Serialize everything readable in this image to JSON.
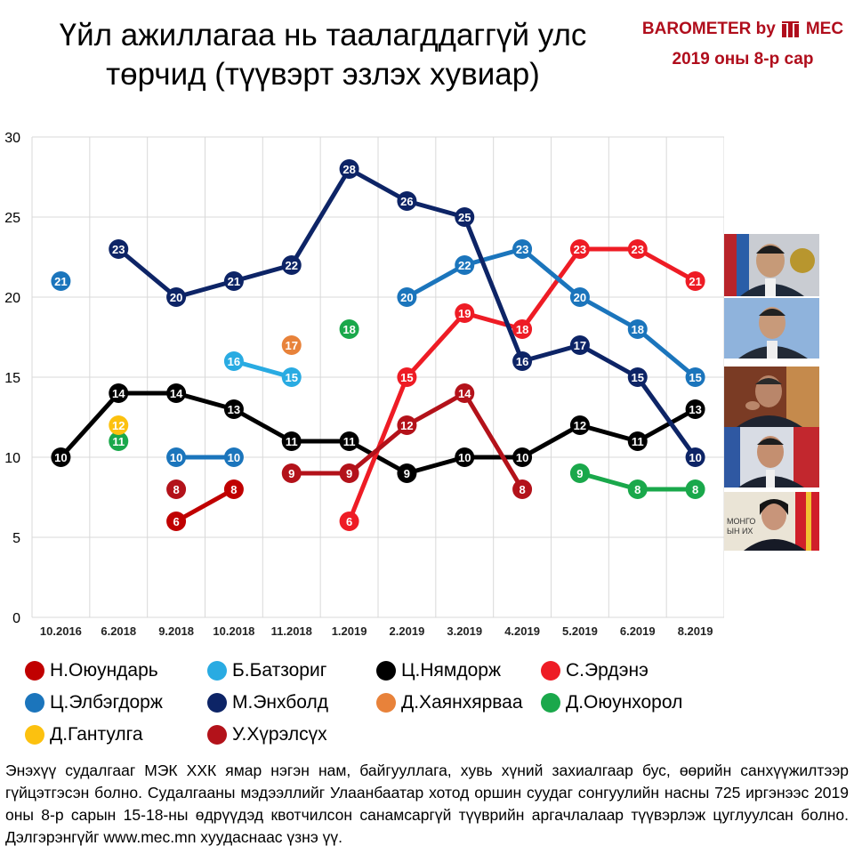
{
  "title": "Үйл ажиллагаа нь таалагддаггүй улс төрчид (түүвэрт эзлэх хувиар)",
  "brand": {
    "name": "BAROMETER by",
    "logo_text": "MEC",
    "date": "2019 оны 8-р сар",
    "color": "#b00d1c"
  },
  "footer": "Энэхүү судалгааг МЭК ХХК ямар нэгэн нам, байгууллага, хувь хүний захиалгаар бус, өөрийн санхүүжилтээр гүйцэтгэсэн болно. Судалгааны мэдээллийг Улаанбаатар хотод оршин суудаг сонгуулийн насны 725 иргэнээс 2019 оны 8-р сарын 15-18-ны өдрүүдэд квотчилсон санамсаргүй түүврийн аргачлалаар түүвэрлэж цуглуулсан болно. Дэлгэрэнгүйг www.mec.mn хуудаснаас үзнэ үү.",
  "chart_data": {
    "type": "line",
    "title": "",
    "xlabel": "",
    "ylabel": "",
    "ylim": [
      0,
      30
    ],
    "yticks": [
      0,
      5,
      10,
      15,
      20,
      25,
      30
    ],
    "categories": [
      "10.2016",
      "6.2018",
      "9.2018",
      "10.2018",
      "11.2018",
      "1.2019",
      "2.2019",
      "3.2019",
      "4.2019",
      "5.2019",
      "6.2019",
      "8.2019"
    ],
    "grid": true,
    "legend_position": "bottom",
    "series": [
      {
        "name": "Н.Оюундарь",
        "color": "#c00000",
        "values": [
          null,
          null,
          6,
          8,
          null,
          null,
          null,
          null,
          null,
          null,
          null,
          null
        ]
      },
      {
        "name": "Б.Батзориг",
        "color": "#29abe2",
        "values": [
          null,
          null,
          null,
          16,
          15,
          null,
          null,
          null,
          null,
          null,
          null,
          null
        ]
      },
      {
        "name": "Ц.Нямдорж",
        "color": "#000000",
        "values": [
          10,
          14,
          14,
          13,
          11,
          11,
          9,
          10,
          10,
          12,
          11,
          13
        ]
      },
      {
        "name": "С.Эрдэнэ",
        "color": "#ee1c25",
        "values": [
          null,
          null,
          null,
          null,
          null,
          6,
          15,
          19,
          18,
          23,
          23,
          21
        ]
      },
      {
        "name": "Ц.Элбэгдорж",
        "color": "#1b75bc",
        "values": [
          21,
          null,
          10,
          10,
          null,
          null,
          20,
          22,
          23,
          20,
          18,
          15
        ]
      },
      {
        "name": "М.Энхболд",
        "color": "#0d2466",
        "values": [
          null,
          23,
          20,
          21,
          22,
          28,
          26,
          25,
          16,
          17,
          15,
          10
        ]
      },
      {
        "name": "Д.Хаянхярваа",
        "color": "#e8823a",
        "values": [
          null,
          null,
          null,
          null,
          17,
          null,
          null,
          null,
          null,
          null,
          null,
          null
        ]
      },
      {
        "name": "Д.Оюунхорол",
        "color": "#1aa84b",
        "values": [
          null,
          11,
          null,
          null,
          null,
          18,
          null,
          null,
          null,
          9,
          8,
          8
        ]
      },
      {
        "name": "Д.Гантулга",
        "color": "#fcc10f",
        "values": [
          null,
          12,
          null,
          null,
          null,
          null,
          null,
          null,
          null,
          null,
          null,
          null
        ]
      },
      {
        "name": "У.Хүрэлсүх",
        "color": "#b3121a",
        "values": [
          null,
          null,
          8,
          null,
          9,
          9,
          12,
          14,
          8,
          null,
          null,
          null
        ]
      }
    ]
  },
  "photos": [
    {
      "name": "photo-politician-1"
    },
    {
      "name": "photo-politician-2"
    },
    {
      "name": "photo-politician-3"
    },
    {
      "name": "photo-politician-4"
    },
    {
      "name": "photo-politician-5",
      "caption": "МОНГО\nЫН ИХ"
    }
  ]
}
